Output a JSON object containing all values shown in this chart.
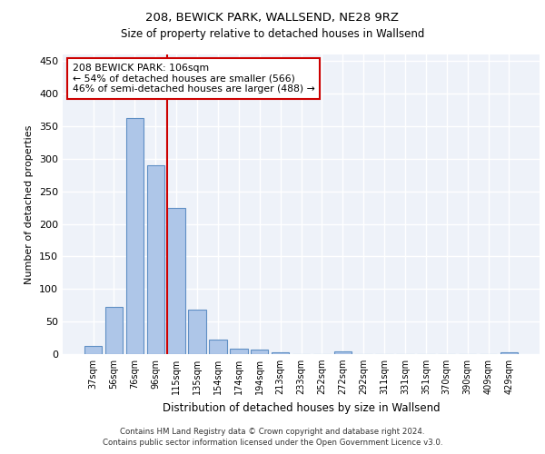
{
  "title1": "208, BEWICK PARK, WALLSEND, NE28 9RZ",
  "title2": "Size of property relative to detached houses in Wallsend",
  "xlabel": "Distribution of detached houses by size in Wallsend",
  "ylabel": "Number of detached properties",
  "bar_categories": [
    "37sqm",
    "56sqm",
    "76sqm",
    "96sqm",
    "115sqm",
    "135sqm",
    "154sqm",
    "174sqm",
    "194sqm",
    "213sqm",
    "233sqm",
    "252sqm",
    "272sqm",
    "292sqm",
    "311sqm",
    "331sqm",
    "351sqm",
    "370sqm",
    "390sqm",
    "409sqm",
    "429sqm"
  ],
  "bar_values": [
    12,
    73,
    363,
    290,
    225,
    68,
    22,
    9,
    7,
    3,
    0,
    0,
    4,
    0,
    0,
    0,
    0,
    0,
    0,
    0,
    3
  ],
  "bar_color": "#aec6e8",
  "bar_edge_color": "#5f8fc4",
  "vline_x": 3.54,
  "vline_color": "#cc0000",
  "annotation_text": "208 BEWICK PARK: 106sqm\n← 54% of detached houses are smaller (566)\n46% of semi-detached houses are larger (488) →",
  "annotation_box_color": "#ffffff",
  "annotation_box_edge_color": "#cc0000",
  "ylim": [
    0,
    460
  ],
  "yticks": [
    0,
    50,
    100,
    150,
    200,
    250,
    300,
    350,
    400,
    450
  ],
  "background_color": "#eef2f9",
  "grid_color": "#ffffff",
  "footer_line1": "Contains HM Land Registry data © Crown copyright and database right 2024.",
  "footer_line2": "Contains public sector information licensed under the Open Government Licence v3.0."
}
